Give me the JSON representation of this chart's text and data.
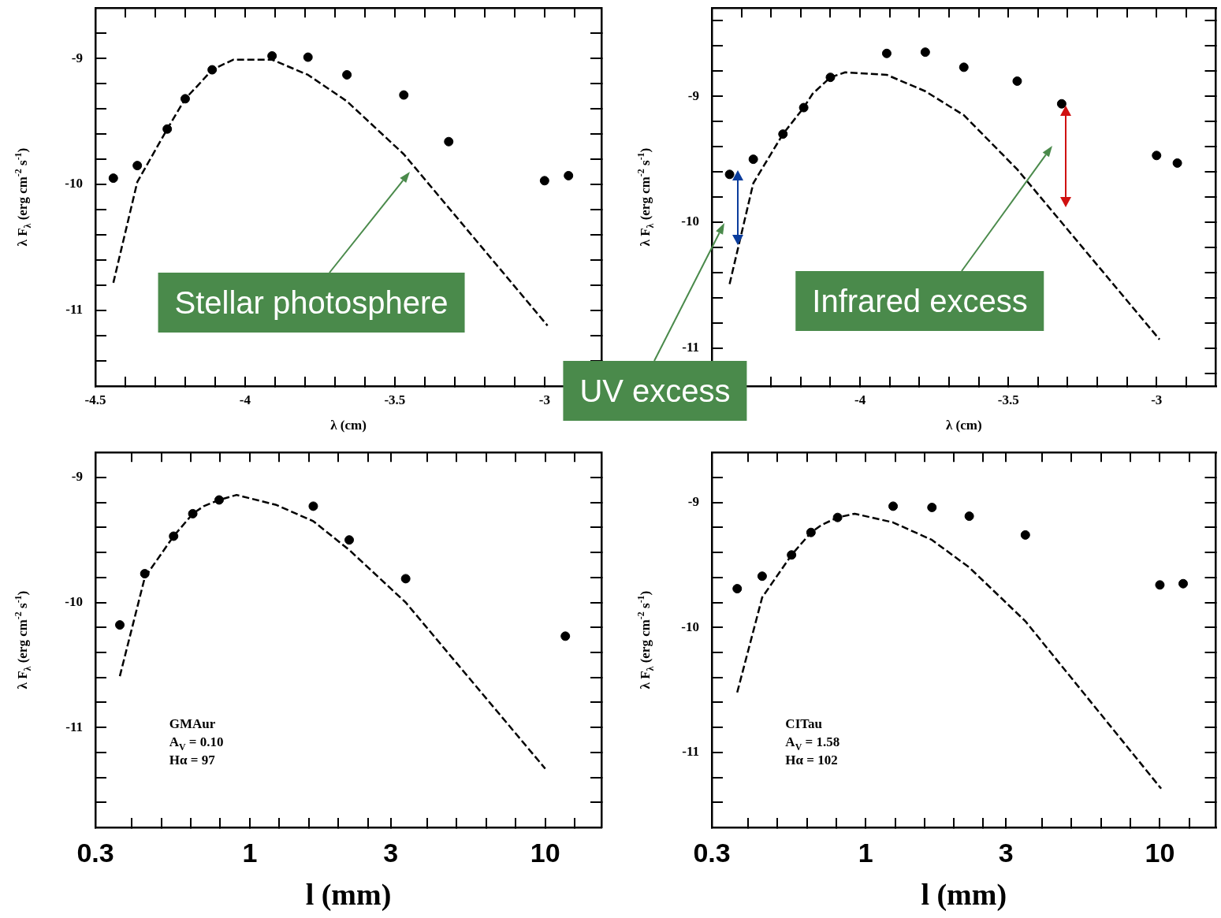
{
  "chart_data": [
    {
      "type": "scatter",
      "xlabel": "λ (cm)",
      "ylabel": "λ F$_{λ}$ (erg cm$^{-2}$ s$^{-1}$)",
      "xlim": [
        -4.5,
        -2.81
      ],
      "ylim": [
        -11.6,
        -8.6
      ],
      "xticks": [
        -4.5,
        {
          "value": -4.4,
          "label": null
        },
        {
          "value": -4.3,
          "label": null
        },
        {
          "value": -4.2,
          "label": null
        },
        {
          "value": -4.1,
          "label": null
        },
        -4,
        {
          "value": -3.9,
          "label": null
        },
        {
          "value": -3.8,
          "label": null
        },
        {
          "value": -3.7,
          "label": null
        },
        {
          "value": -3.6,
          "label": null
        },
        -3.5,
        {
          "value": -3.4,
          "label": null
        },
        {
          "value": -3.3,
          "label": null
        },
        {
          "value": -3.2,
          "label": null
        },
        {
          "value": -3.1,
          "label": null
        },
        -3,
        {
          "value": -2.9,
          "label": null
        }
      ],
      "yticks": [
        {
          "value": -8.8,
          "label": null
        },
        -9,
        {
          "value": -9.2,
          "label": null
        },
        {
          "value": -9.4,
          "label": null
        },
        {
          "value": -9.6,
          "label": null
        },
        {
          "value": -9.8,
          "label": null
        },
        -10,
        {
          "value": -10.2,
          "label": null
        },
        {
          "value": -10.4,
          "label": null
        },
        {
          "value": -10.6,
          "label": null
        },
        {
          "value": -10.8,
          "label": null
        },
        -11,
        {
          "value": -11.2,
          "label": null
        },
        {
          "value": -11.4,
          "label": null
        }
      ],
      "annotations": [
        "Stellar photosphere"
      ],
      "series": [
        {
          "type": "scatter",
          "color": "#000000",
          "marker": "circle",
          "x": [
            -4.44,
            -4.36,
            -4.26,
            -4.2,
            -4.11,
            -3.91,
            -3.79,
            -3.66,
            -3.47,
            -3.32,
            -3.0,
            -2.92
          ],
          "values": [
            -9.95,
            -9.85,
            -9.56,
            -9.32,
            -9.09,
            -8.98,
            -8.99,
            -9.13,
            -9.29,
            -9.66,
            -9.97,
            -9.93
          ]
        },
        {
          "type": "line",
          "color": "#000000",
          "marker": "none",
          "line_style": "dashed",
          "x": [
            -4.44,
            -4.36,
            -4.26,
            -4.2,
            -4.16,
            -4.11,
            -4.04,
            -3.91,
            -3.79,
            -3.66,
            -3.47,
            -2.99
          ],
          "values": [
            -10.78,
            -9.98,
            -9.56,
            -9.32,
            -9.22,
            -9.09,
            -9.01,
            -9.01,
            -9.13,
            -9.34,
            -9.76,
            -11.12
          ]
        }
      ]
    },
    {
      "type": "scatter",
      "xlabel": "λ (cm)",
      "ylabel": "λ F$_{λ}$ (erg cm$^{-2}$ s$^{-1}$)",
      "xlim": [
        -4.5,
        -2.8
      ],
      "ylim": [
        -11.3,
        -8.3
      ],
      "xticks": [
        {
          "value": -4.5,
          "label": null
        },
        {
          "value": -4.4,
          "label": null
        },
        {
          "value": -4.3,
          "label": null
        },
        {
          "value": -4.2,
          "label": null
        },
        {
          "value": -4.1,
          "label": null
        },
        -4,
        {
          "value": -3.9,
          "label": null
        },
        {
          "value": -3.8,
          "label": null
        },
        {
          "value": -3.7,
          "label": null
        },
        {
          "value": -3.6,
          "label": null
        },
        -3.5,
        {
          "value": -3.4,
          "label": null
        },
        {
          "value": -3.3,
          "label": null
        },
        {
          "value": -3.2,
          "label": null
        },
        {
          "value": -3.1,
          "label": null
        },
        -3,
        {
          "value": -2.9,
          "label": null
        }
      ],
      "yticks": [
        {
          "value": -8.4,
          "label": null
        },
        {
          "value": -8.6,
          "label": null
        },
        {
          "value": -8.8,
          "label": null
        },
        -9,
        {
          "value": -9.2,
          "label": null
        },
        {
          "value": -9.4,
          "label": null
        },
        {
          "value": -9.6,
          "label": null
        },
        {
          "value": -9.8,
          "label": null
        },
        -10,
        {
          "value": -10.2,
          "label": null
        },
        {
          "value": -10.4,
          "label": null
        },
        {
          "value": -10.6,
          "label": null
        },
        {
          "value": -10.8,
          "label": null
        },
        -11,
        {
          "value": -11.2,
          "label": null
        }
      ],
      "annotations": [
        "UV excess",
        "Infrared excess"
      ],
      "series": [
        {
          "type": "scatter",
          "color": "#000000",
          "marker": "circle",
          "x": [
            -4.44,
            -4.36,
            -4.26,
            -4.19,
            -4.1,
            -3.91,
            -3.78,
            -3.65,
            -3.47,
            -3.32,
            -3.0,
            -2.93
          ],
          "values": [
            -9.62,
            -9.5,
            -9.3,
            -9.09,
            -8.85,
            -8.66,
            -8.65,
            -8.77,
            -8.88,
            -9.06,
            -9.47,
            -9.53
          ]
        },
        {
          "type": "line",
          "color": "#000000",
          "marker": "none",
          "line_style": "dashed",
          "x": [
            -4.44,
            -4.36,
            -4.26,
            -4.19,
            -4.16,
            -4.1,
            -4.05,
            -3.91,
            -3.78,
            -3.65,
            -3.47,
            -2.99
          ],
          "values": [
            -10.49,
            -9.69,
            -9.3,
            -9.09,
            -8.98,
            -8.85,
            -8.81,
            -8.83,
            -8.96,
            -9.15,
            -9.58,
            -10.93
          ]
        }
      ]
    },
    {
      "type": "scatter",
      "xlabel": "l (mm)",
      "ylabel": "λ F$_{λ}$ (erg cm$^{-2}$ s$^{-1}$)",
      "log": "x",
      "xlim": [
        0.3,
        15.5
      ],
      "ylim": [
        -11.8,
        -8.8
      ],
      "xticks": [
        0.3,
        {
          "value": 0.3981,
          "label": null
        },
        {
          "value": 0.5012,
          "label": null
        },
        {
          "value": 0.631,
          "label": null
        },
        {
          "value": 0.7943,
          "label": null
        },
        1,
        {
          "value": 1.259,
          "label": null
        },
        {
          "value": 1.585,
          "label": null
        },
        {
          "value": 1.995,
          "label": null
        },
        {
          "value": 2.512,
          "label": null
        },
        3,
        {
          "value": 3.981,
          "label": null
        },
        {
          "value": 5.012,
          "label": null
        },
        {
          "value": 6.31,
          "label": null
        },
        {
          "value": 7.943,
          "label": null
        },
        10,
        {
          "value": 12.59,
          "label": null
        }
      ],
      "yticks": [
        -9,
        {
          "value": -9.2,
          "label": null
        },
        {
          "value": -9.4,
          "label": null
        },
        {
          "value": -9.6,
          "label": null
        },
        {
          "value": -9.8,
          "label": null
        },
        -10,
        {
          "value": -10.2,
          "label": null
        },
        {
          "value": -10.4,
          "label": null
        },
        {
          "value": -10.6,
          "label": null
        },
        {
          "value": -10.8,
          "label": null
        },
        -11,
        {
          "value": -11.2,
          "label": null
        },
        {
          "value": -11.4,
          "label": null
        },
        {
          "value": -11.6,
          "label": null
        }
      ],
      "annotations": [
        "GMAur",
        "A$_{V}$ = 0.10",
        "Hα = 97"
      ],
      "series": [
        {
          "type": "scatter",
          "color": "#000000",
          "marker": "circle",
          "x": [
            0.363,
            0.441,
            0.552,
            0.641,
            0.787,
            1.64,
            2.17,
            3.37,
            11.7
          ],
          "values": [
            -10.18,
            -9.77,
            -9.47,
            -9.29,
            -9.18,
            -9.23,
            -9.5,
            -9.81,
            -10.27
          ]
        },
        {
          "type": "line",
          "color": "#000000",
          "marker": "none",
          "line_style": "dashed",
          "x": [
            0.363,
            0.441,
            0.552,
            0.641,
            0.698,
            0.787,
            0.902,
            1.23,
            1.64,
            2.17,
            3.37,
            10.0
          ],
          "values": [
            -10.59,
            -9.8,
            -9.47,
            -9.29,
            -9.23,
            -9.18,
            -9.14,
            -9.22,
            -9.35,
            -9.58,
            -10.0,
            -11.33
          ]
        }
      ]
    },
    {
      "type": "scatter",
      "xlabel": "l (mm)",
      "ylabel": "λ F$_{λ}$ (erg cm$^{-2}$ s$^{-1}$)",
      "log": "x",
      "xlim": [
        0.3,
        15.5
      ],
      "ylim": [
        -11.6,
        -8.6
      ],
      "xticks": [
        0.3,
        {
          "value": 0.3981,
          "label": null
        },
        {
          "value": 0.5012,
          "label": null
        },
        {
          "value": 0.631,
          "label": null
        },
        {
          "value": 0.7943,
          "label": null
        },
        1,
        {
          "value": 1.259,
          "label": null
        },
        {
          "value": 1.585,
          "label": null
        },
        {
          "value": 1.995,
          "label": null
        },
        {
          "value": 2.512,
          "label": null
        },
        3,
        {
          "value": 3.981,
          "label": null
        },
        {
          "value": 5.012,
          "label": null
        },
        {
          "value": 6.31,
          "label": null
        },
        {
          "value": 7.943,
          "label": null
        },
        10,
        {
          "value": 12.59,
          "label": null
        }
      ],
      "yticks": [
        {
          "value": -8.8,
          "label": null
        },
        -9,
        {
          "value": -9.2,
          "label": null
        },
        {
          "value": -9.4,
          "label": null
        },
        {
          "value": -9.6,
          "label": null
        },
        {
          "value": -9.8,
          "label": null
        },
        -10,
        {
          "value": -10.2,
          "label": null
        },
        {
          "value": -10.4,
          "label": null
        },
        {
          "value": -10.6,
          "label": null
        },
        {
          "value": -10.8,
          "label": null
        },
        -11,
        {
          "value": -11.2,
          "label": null
        },
        {
          "value": -11.4,
          "label": null
        }
      ],
      "annotations": [
        "CITau",
        "A$_{V}$ = 1.58",
        "Hα = 102"
      ],
      "series": [
        {
          "type": "scatter",
          "color": "#000000",
          "marker": "circle",
          "x": [
            0.366,
            0.445,
            0.56,
            0.652,
            0.803,
            1.24,
            1.68,
            2.25,
            3.49,
            10.0,
            12.0
          ],
          "values": [
            -9.69,
            -9.59,
            -9.42,
            -9.24,
            -9.12,
            -9.03,
            -9.04,
            -9.11,
            -9.26,
            -9.66,
            -9.65
          ]
        },
        {
          "type": "line",
          "color": "#000000",
          "marker": "none",
          "line_style": "dashed",
          "x": [
            0.366,
            0.445,
            0.56,
            0.652,
            0.708,
            0.803,
            0.918,
            1.24,
            1.68,
            2.25,
            3.49,
            10.1
          ],
          "values": [
            -10.52,
            -9.76,
            -9.42,
            -9.24,
            -9.18,
            -9.12,
            -9.09,
            -9.16,
            -9.3,
            -9.52,
            -9.95,
            -11.29
          ]
        }
      ]
    }
  ]
}
